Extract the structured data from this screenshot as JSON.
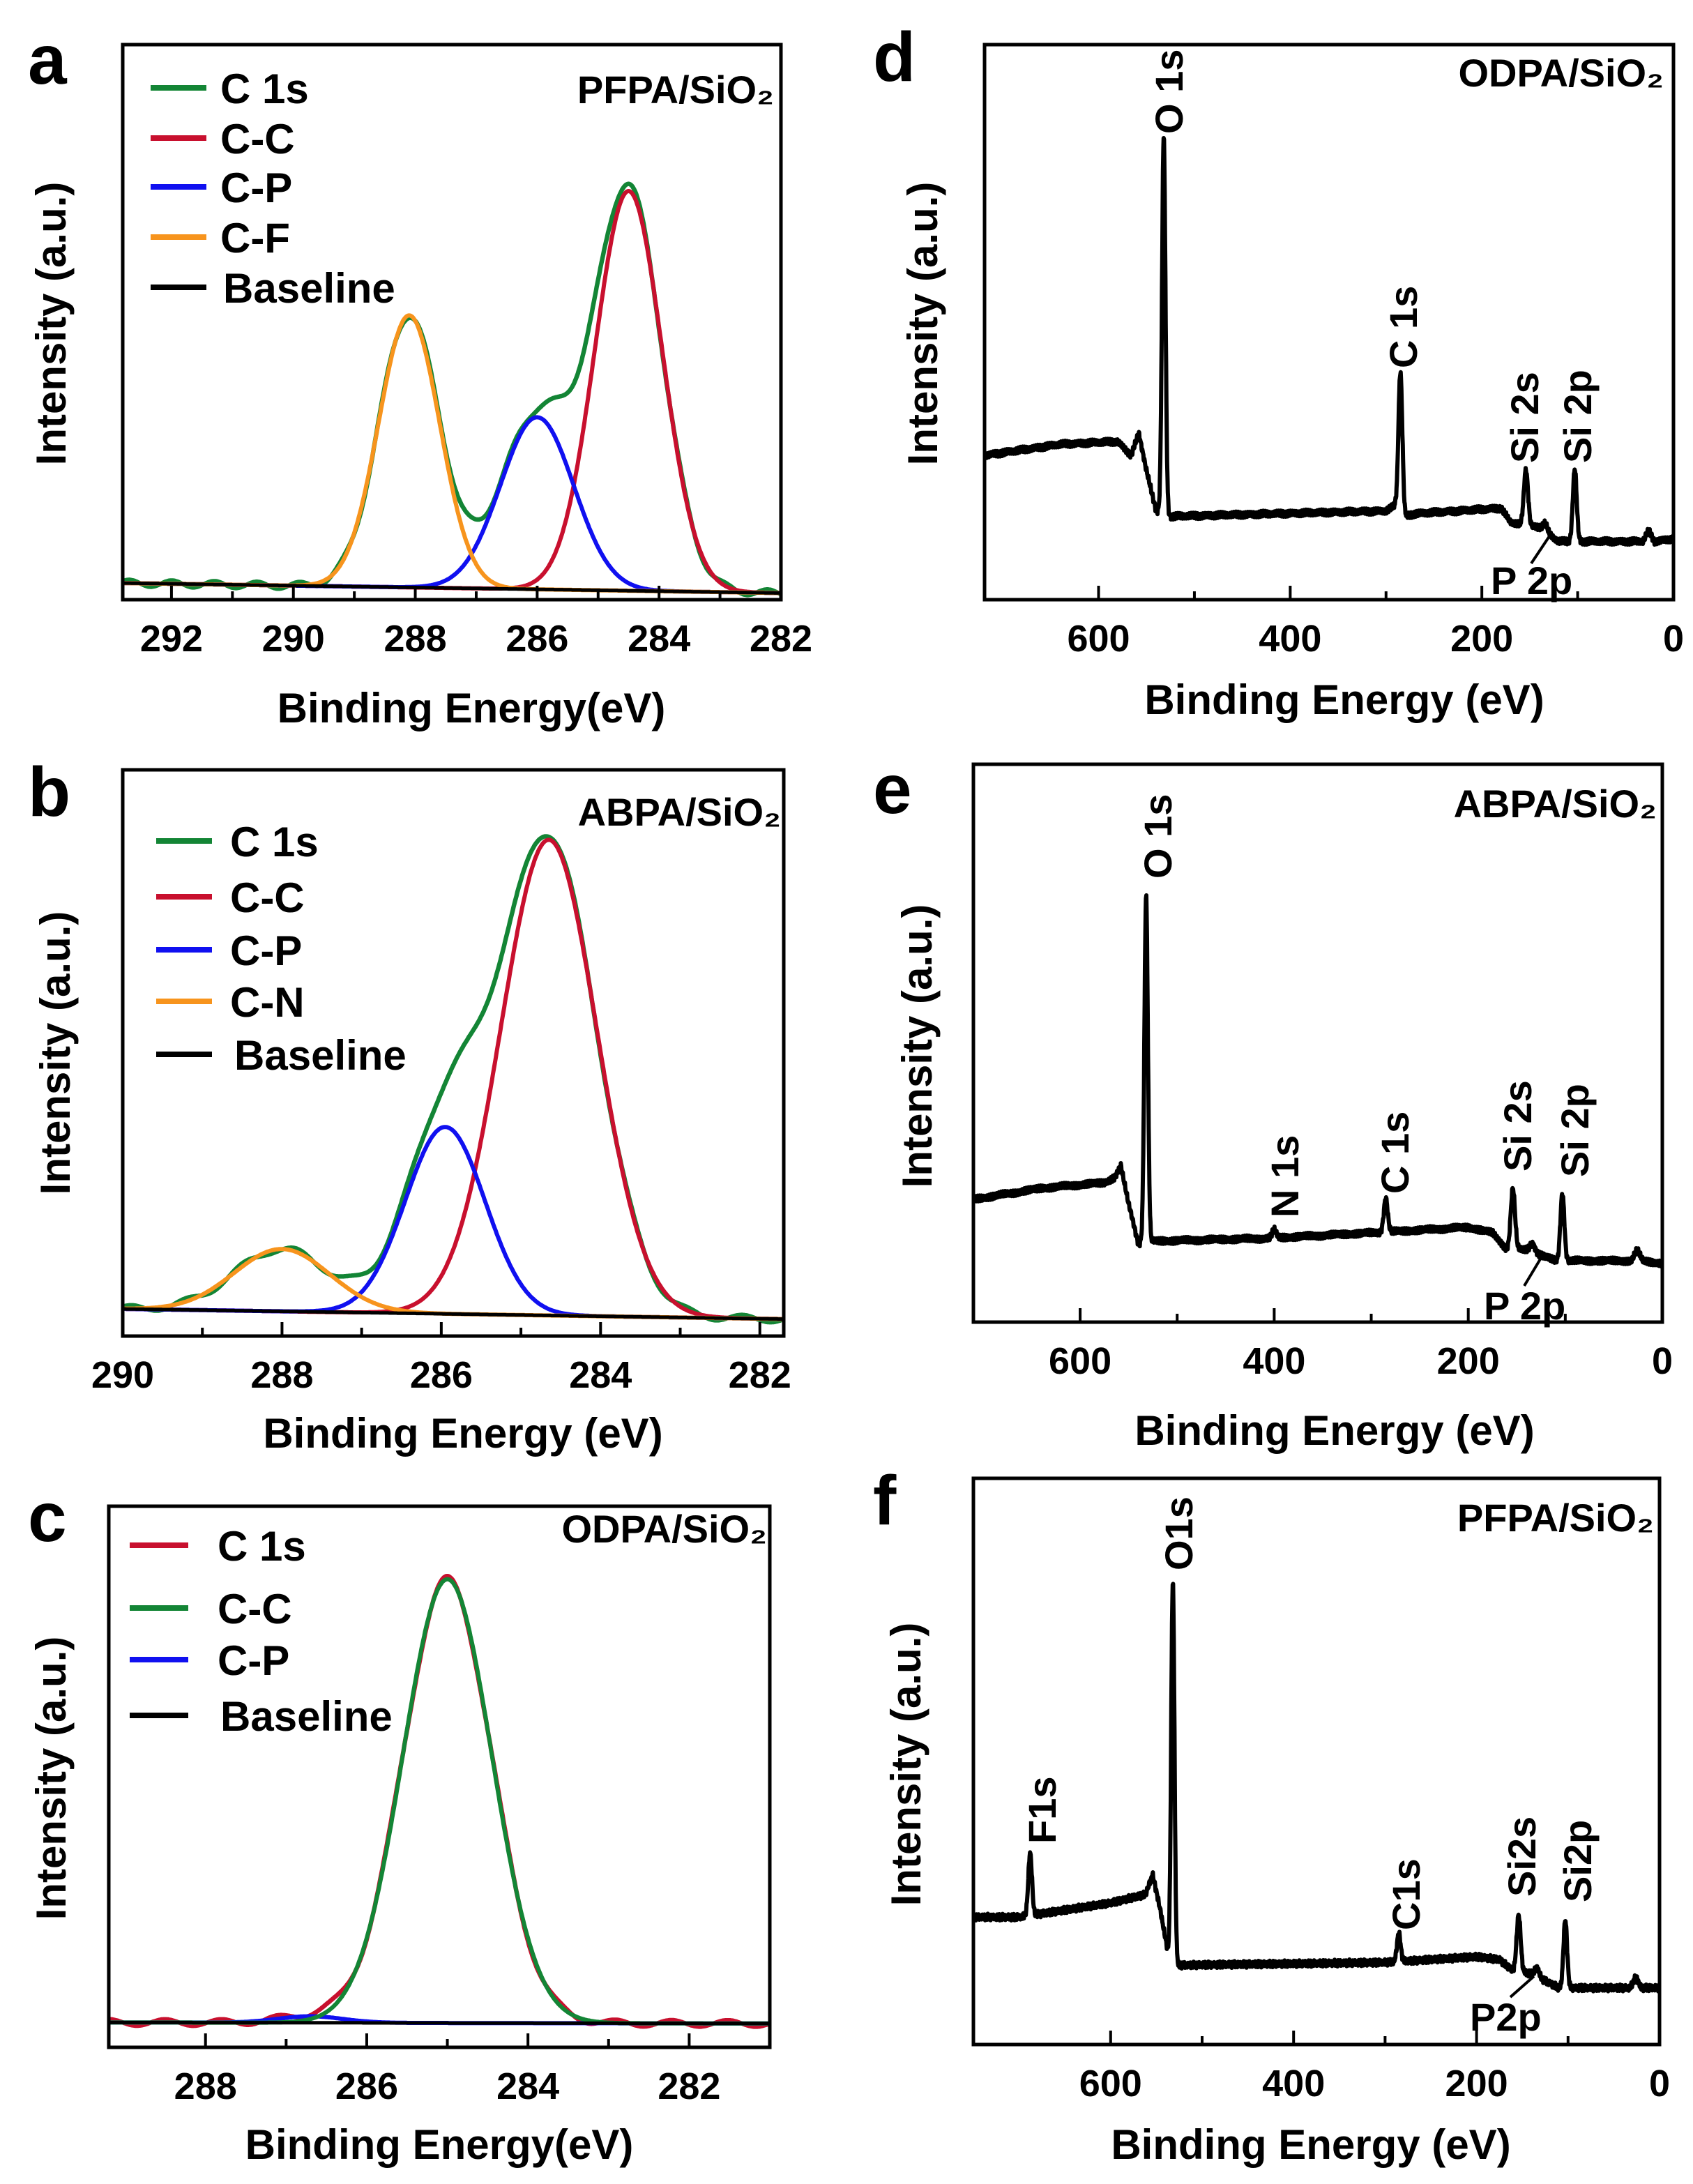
{
  "chart_data": [
    {
      "id": "a",
      "type": "line",
      "panel_letter": "a",
      "title": "PFPA/SiO₂",
      "xlabel": "Binding Energy(eV)",
      "ylabel": "Intensity (a.u.)",
      "xlim": [
        292.8,
        282
      ],
      "ylim": [
        0,
        100
      ],
      "xticks": [
        292,
        290,
        288,
        286,
        284,
        282
      ],
      "baseline": {
        "name": "Baseline",
        "color": "#000000",
        "from": [
          292.8,
          3.0
        ],
        "to": [
          282,
          1.2
        ]
      },
      "components": [
        {
          "name": "C-C",
          "color": "#c8102e",
          "center": 284.5,
          "height": 72,
          "sigma": 0.55
        },
        {
          "name": "C-P",
          "color": "#1010f0",
          "center": 286.0,
          "height": 31,
          "sigma": 0.6
        },
        {
          "name": "C-F",
          "color": "#f7941d",
          "center": 288.1,
          "height": 49,
          "sigma": 0.5
        }
      ],
      "envelope": {
        "name": "C 1s",
        "color": "#138535"
      },
      "legend": [
        {
          "label": "C 1s",
          "color": "#138535"
        },
        {
          "label": "C-C",
          "color": "#c8102e"
        },
        {
          "label": "C-P",
          "color": "#1010f0"
        },
        {
          "label": "C-F",
          "color": "#f7941d"
        },
        {
          "label": "Baseline",
          "color": "#000000"
        }
      ]
    },
    {
      "id": "b",
      "type": "line",
      "panel_letter": "b",
      "title": "ABPA/SiO₂",
      "xlabel": "Binding Energy (eV)",
      "ylabel": "Intensity (a.u.)",
      "xlim": [
        290,
        281.7
      ],
      "ylim": [
        0,
        100
      ],
      "xticks": [
        290,
        288,
        286,
        284,
        282
      ],
      "baseline": {
        "name": "Baseline",
        "color": "#000000",
        "from": [
          290,
          4.8
        ],
        "to": [
          281.7,
          3.0
        ]
      },
      "components": [
        {
          "name": "C-C",
          "color": "#c8102e",
          "center": 284.65,
          "height": 84,
          "sigma": 0.6
        },
        {
          "name": "C-P",
          "color": "#1010f0",
          "center": 285.95,
          "height": 33,
          "sigma": 0.5
        },
        {
          "name": "C-N",
          "color": "#f7941d",
          "center": 288.0,
          "height": 11,
          "sigma": 0.6
        }
      ],
      "envelope": {
        "name": "C 1s",
        "color": "#138535"
      },
      "legend": [
        {
          "label": "C 1s",
          "color": "#138535"
        },
        {
          "label": "C-C",
          "color": "#c8102e"
        },
        {
          "label": "C-P",
          "color": "#1010f0"
        },
        {
          "label": "C-N",
          "color": "#f7941d"
        },
        {
          "label": "Baseline",
          "color": "#000000"
        }
      ]
    },
    {
      "id": "c",
      "type": "line",
      "panel_letter": "c",
      "title": "ODPA/SiO₂",
      "xlabel": "Binding Energy(eV)",
      "ylabel": "Intensity (a.u.)",
      "xlim": [
        289.2,
        281.0
      ],
      "ylim": [
        0,
        100
      ],
      "xticks": [
        288,
        286,
        284,
        282
      ],
      "baseline": {
        "name": "Baseline",
        "color": "#000000",
        "from": [
          289.2,
          4.6
        ],
        "to": [
          281,
          4.4
        ]
      },
      "components": [
        {
          "name": "C-P",
          "color": "#1010f0",
          "center": 286.7,
          "height": 1.2,
          "sigma": 0.4
        },
        {
          "name": "C-C",
          "color": "#138535",
          "center": 285.0,
          "height": 82,
          "sigma": 0.55
        }
      ],
      "envelope": {
        "name": "C 1s",
        "color": "#c8102e"
      },
      "legend": [
        {
          "label": "C 1s",
          "color": "#c8102e"
        },
        {
          "label": "C-C",
          "color": "#138535"
        },
        {
          "label": "C-P",
          "color": "#1010f0"
        },
        {
          "label": "Baseline",
          "color": "#000000"
        }
      ]
    },
    {
      "id": "d",
      "type": "line",
      "panel_letter": "d",
      "title": "ODPA/SiO₂",
      "xlabel": "Binding Energy (eV)",
      "ylabel": "Intensity (a.u.)",
      "xlim": [
        719,
        0
      ],
      "ylim": [
        0,
        100
      ],
      "xticks": [
        600,
        400,
        200,
        0
      ],
      "background": [
        [
          719,
          26
        ],
        [
          640,
          28
        ],
        [
          580,
          28.5
        ],
        [
          566,
          26
        ],
        [
          558,
          30
        ],
        [
          551,
          24
        ],
        [
          540,
          16
        ],
        [
          525,
          15
        ],
        [
          300,
          16
        ],
        [
          290,
          17
        ],
        [
          280,
          15
        ],
        [
          270,
          15.5
        ],
        [
          180,
          16.5
        ],
        [
          170,
          14
        ],
        [
          160,
          13.5
        ],
        [
          140,
          13
        ],
        [
          120,
          10.5
        ],
        [
          100,
          10.5
        ],
        [
          32,
          10.5
        ],
        [
          26,
          12.5
        ],
        [
          20,
          10.5
        ],
        [
          0,
          11
        ]
      ],
      "peaks": [
        {
          "label": "O 1s",
          "center": 532,
          "amp": 68,
          "sigma": 1.8
        },
        {
          "label": "C 1s",
          "center": 285,
          "amp": 25,
          "sigma": 2
        },
        {
          "label": "Si 2s",
          "center": 154,
          "amp": 10,
          "sigma": 2.2
        },
        {
          "label": "Si 2p",
          "center": 103,
          "amp": 13,
          "sigma": 2
        },
        {
          "label": "P 2p",
          "center": 134,
          "amp": 1.5,
          "sigma": 2.5
        }
      ]
    },
    {
      "id": "e",
      "type": "line",
      "panel_letter": "e",
      "title": "ABPA/SiO₂",
      "xlabel": "Binding Energy (eV)",
      "ylabel": "Intensity (a.u.)",
      "xlim": [
        710,
        0
      ],
      "ylim": [
        0,
        100
      ],
      "xticks": [
        600,
        400,
        200,
        0
      ],
      "background": [
        [
          710,
          22
        ],
        [
          640,
          24
        ],
        [
          575,
          25
        ],
        [
          564,
          26
        ],
        [
          558,
          28
        ],
        [
          551,
          22
        ],
        [
          540,
          14
        ],
        [
          530,
          14.5
        ],
        [
          410,
          15
        ],
        [
          300,
          16
        ],
        [
          200,
          17
        ],
        [
          175,
          16
        ],
        [
          160,
          13
        ],
        [
          140,
          13
        ],
        [
          110,
          11
        ],
        [
          32,
          11
        ],
        [
          26,
          13
        ],
        [
          20,
          11
        ],
        [
          0,
          10.5
        ]
      ],
      "peaks": [
        {
          "label": "O 1s",
          "center": 532,
          "amp": 62,
          "sigma": 1.8
        },
        {
          "label": "N 1s",
          "center": 400,
          "amp": 1.5,
          "sigma": 2
        },
        {
          "label": "C 1s",
          "center": 285,
          "amp": 6,
          "sigma": 2
        },
        {
          "label": "Si 2s",
          "center": 154,
          "amp": 11,
          "sigma": 2.2
        },
        {
          "label": "Si 2p",
          "center": 103,
          "amp": 12,
          "sigma": 2
        },
        {
          "label": "P 2p",
          "center": 134,
          "amp": 1.5,
          "sigma": 2.5
        }
      ]
    },
    {
      "id": "f",
      "type": "line",
      "panel_letter": "f",
      "title": "PFPA/SiO₂",
      "xlabel": "Binding Energy (eV)",
      "ylabel": "Intensity (a.u.)",
      "xlim": [
        750,
        0
      ],
      "ylim": [
        0,
        100
      ],
      "xticks": [
        600,
        400,
        200,
        0
      ],
      "background": [
        [
          750,
          22.5
        ],
        [
          700,
          22.5
        ],
        [
          600,
          25
        ],
        [
          562,
          26.5
        ],
        [
          554,
          30
        ],
        [
          546,
          24
        ],
        [
          537,
          16
        ],
        [
          530,
          14
        ],
        [
          300,
          14.5
        ],
        [
          200,
          15.5
        ],
        [
          175,
          15
        ],
        [
          160,
          13
        ],
        [
          140,
          12.5
        ],
        [
          110,
          10
        ],
        [
          32,
          10
        ],
        [
          26,
          12
        ],
        [
          20,
          10
        ],
        [
          0,
          10
        ]
      ],
      "peaks": [
        {
          "label": "F1s",
          "center": 688,
          "amp": 11,
          "sigma": 2
        },
        {
          "label": "O1s",
          "center": 532,
          "amp": 67,
          "sigma": 1.8
        },
        {
          "label": "C1s",
          "center": 285,
          "amp": 5,
          "sigma": 2
        },
        {
          "label": "Si2s",
          "center": 154,
          "amp": 10,
          "sigma": 2.2
        },
        {
          "label": "Si2p",
          "center": 103,
          "amp": 12,
          "sigma": 2
        },
        {
          "label": "P2p",
          "center": 134,
          "amp": 1.5,
          "sigma": 2.5
        }
      ]
    }
  ]
}
